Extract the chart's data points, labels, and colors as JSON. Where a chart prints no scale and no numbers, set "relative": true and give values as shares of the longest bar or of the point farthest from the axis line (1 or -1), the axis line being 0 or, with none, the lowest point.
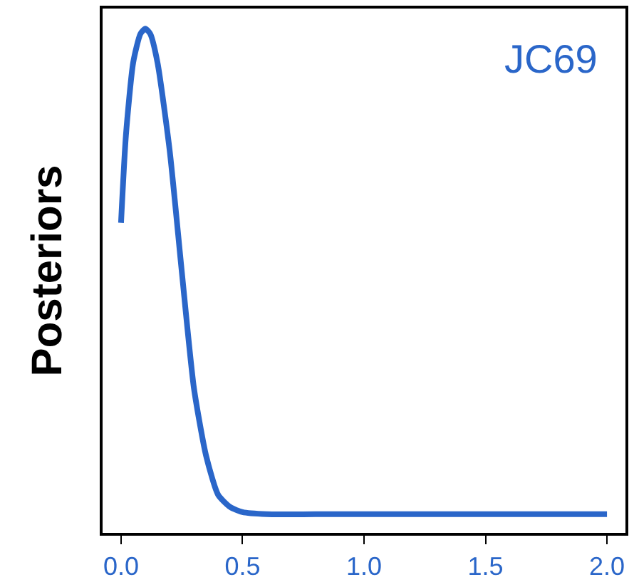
{
  "chart_data": {
    "type": "line",
    "ylabel": "Posteriors",
    "annotations": [
      "JC69"
    ],
    "relative": true,
    "x": [
      0,
      0.02,
      0.05,
      0.08,
      0.1,
      0.12,
      0.15,
      0.2,
      0.25,
      0.3,
      0.35,
      0.4,
      0.45,
      0.5,
      0.6,
      0.8,
      1.0,
      1.5,
      2.0
    ],
    "series": [
      {
        "color": "#2a66c9",
        "values": [
          0.615,
          0.788,
          0.933,
          0.99,
          1.0,
          0.99,
          0.933,
          0.759,
          0.518,
          0.287,
          0.153,
          0.075,
          0.051,
          0.041,
          0.037,
          0.037,
          0.037,
          0.037,
          0.037
        ]
      }
    ],
    "xlim": [
      -0.076,
      2.076
    ],
    "xticks": [
      {
        "value": 0,
        "label": "0.0"
      },
      {
        "value": 0.5,
        "label": "0.5"
      },
      {
        "value": 1,
        "label": "1.0"
      },
      {
        "value": 1.5,
        "label": "1.5"
      },
      {
        "value": 2,
        "label": "2.0"
      }
    ],
    "marker": "none",
    "line_style": "solid"
  }
}
